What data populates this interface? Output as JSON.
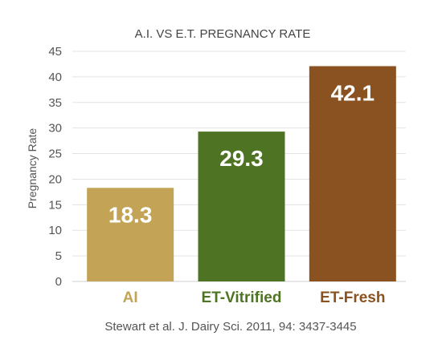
{
  "chart_data": {
    "type": "bar",
    "title": "A.I. VS E.T. PREGNANCY RATE",
    "ylabel": "Pregnancy Rate",
    "xlabel": "",
    "ylim": [
      0,
      45
    ],
    "yticks": [
      0,
      5,
      10,
      15,
      20,
      25,
      30,
      35,
      40,
      45
    ],
    "grid": true,
    "categories": [
      "AI",
      "ET-Vitrified",
      "ET-Fresh"
    ],
    "values": [
      18.3,
      29.3,
      42.1
    ],
    "value_labels": [
      "18.3",
      "29.3",
      "42.1"
    ],
    "colors": [
      "#c3a457",
      "#4e7323",
      "#8a5220"
    ],
    "category_label_colors": [
      "#c3a457",
      "#4e7323",
      "#8a5220"
    ],
    "source": "Stewart et al. J. Dairy Sci. 2011, 94: 3437-3445"
  }
}
